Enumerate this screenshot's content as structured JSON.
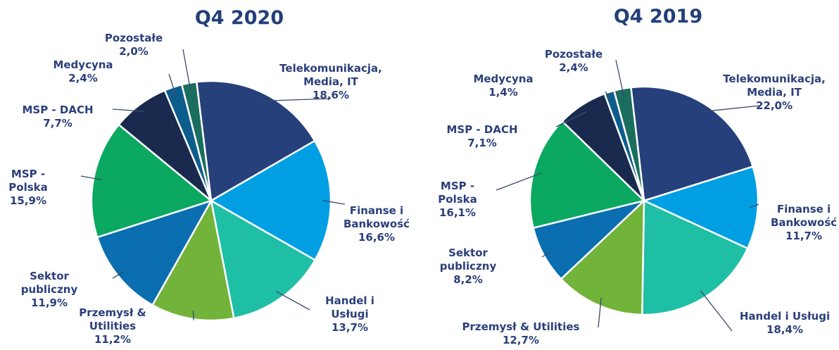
{
  "chart_data": [
    {
      "type": "pie",
      "title": "Q4 2020",
      "categories": [
        "Telekomunikacja, Media, IT",
        "Finanse i Bankowość",
        "Handel i Usługi",
        "Przemysł & Utilities",
        "Sektor publiczny",
        "MSP - Polska",
        "MSP - DACH",
        "Medycyna",
        "Pozostałe"
      ],
      "values": [
        18.6,
        16.6,
        13.7,
        11.2,
        11.9,
        15.9,
        7.7,
        2.4,
        2.0
      ],
      "value_labels": [
        "18,6%",
        "16,6%",
        "13,7%",
        "11,2%",
        "11,9%",
        "15,9%",
        "7,7%",
        "2,4%",
        "2,0%"
      ],
      "colors": [
        "#25407a",
        "#009fe3",
        "#1fbfa6",
        "#72b33a",
        "#0a6eb0",
        "#0aa860",
        "#1a2a4f",
        "#0d5d8c",
        "#1b6e5e"
      ]
    },
    {
      "type": "pie",
      "title": "Q4 2019",
      "categories": [
        "Telekomunikacja, Media, IT",
        "Finanse i Bankowość",
        "Handel i Usługi",
        "Przemysł & Utilities",
        "Sektor publiczny",
        "MSP - Polska",
        "MSP - DACH",
        "Medycyna",
        "Pozostałe"
      ],
      "values": [
        22.0,
        11.7,
        18.4,
        12.7,
        8.2,
        16.1,
        7.1,
        1.4,
        2.4
      ],
      "value_labels": [
        "22,0%",
        "11,7%",
        "18,4%",
        "12,7%",
        "8,2%",
        "16,1%",
        "7,1%",
        "1,4%",
        "2,4%"
      ],
      "colors": [
        "#25407a",
        "#009fe3",
        "#1fbfa6",
        "#72b33a",
        "#0a6eb0",
        "#0aa860",
        "#1a2a4f",
        "#0d5d8c",
        "#1b6e5e"
      ]
    }
  ]
}
